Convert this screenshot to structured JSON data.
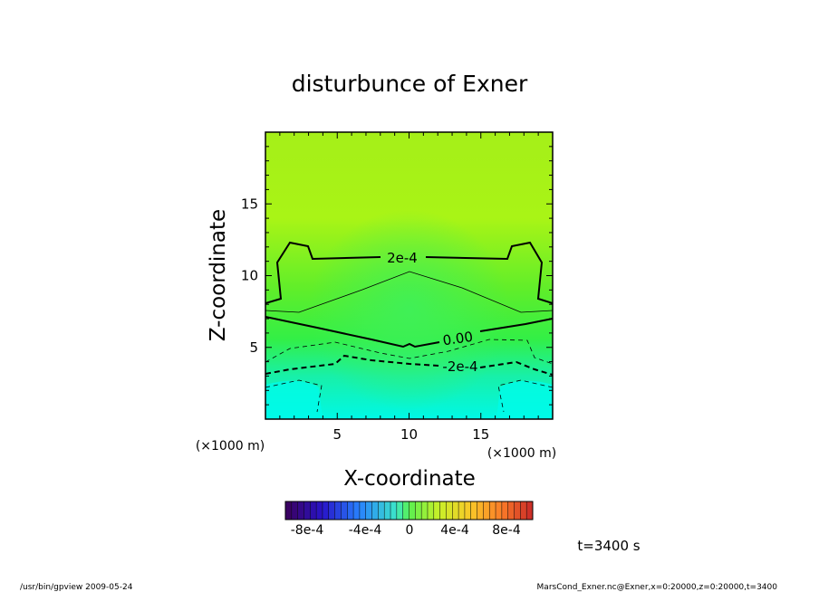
{
  "chart_data": {
    "type": "heatmap",
    "title": "disturbunce of Exner",
    "xlabel": "X-coordinate",
    "ylabel": "Z-coordinate",
    "x_unit": "(×1000 m)",
    "y_unit": "(×1000 m)",
    "xlim": [
      0,
      20
    ],
    "ylim": [
      0,
      20
    ],
    "x_ticks": [
      5,
      10,
      15
    ],
    "y_ticks": [
      5,
      10,
      15
    ],
    "contour_labels": [
      "2e-4",
      "0.00",
      "-2e-4"
    ],
    "colorbar": {
      "range": [
        -0.001,
        0.001
      ],
      "tick_labels": [
        "-8e-4",
        "-4e-4",
        "0",
        "4e-4",
        "8e-4"
      ],
      "tick_values": [
        -0.0008,
        -0.0004,
        0,
        0.0004,
        0.0008
      ]
    },
    "time_label": "t=3400 s"
  },
  "footer": {
    "left": "/usr/bin/gpview  2009-05-24",
    "right": "MarsCond_Exner.nc@Exner,x=0:20000,z=0:20000,t=3400"
  }
}
